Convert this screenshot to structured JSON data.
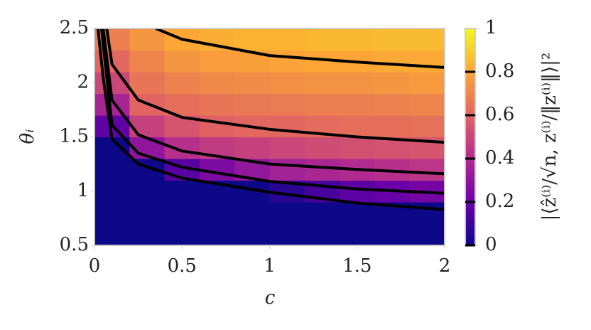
{
  "chart_data": {
    "type": "heatmap",
    "xlabel": "c",
    "ylabel": "θᵢ",
    "zlabel": "|⟨ẑ⁽ⁱ⁾/√n, z⁽ⁱ⁾/‖z⁽ⁱ⁾‖⟩|²",
    "xlim": [
      0,
      2
    ],
    "ylim": [
      0.5,
      2.5
    ],
    "zlim": [
      0,
      1
    ],
    "xticks": [
      0,
      0.5,
      1,
      1.5,
      2
    ],
    "yticks": [
      0.5,
      1,
      1.5,
      2,
      2.5
    ],
    "zticks": [
      0,
      0.2,
      0.4,
      0.6,
      0.8,
      1
    ],
    "colorscale": [
      "#0d0887",
      "#6a00a8",
      "#b12a90",
      "#e16462",
      "#fca636",
      "#f0f921"
    ],
    "x_bins": [
      0,
      0.2,
      0.4,
      0.6,
      0.8,
      1,
      1.2,
      1.4,
      1.6,
      1.8,
      2
    ],
    "y_bins": [
      0.5,
      0.7,
      0.9,
      1.1,
      1.3,
      1.5,
      1.7,
      1.9,
      2.1,
      2.3,
      2.5
    ],
    "z": [
      [
        0,
        0,
        0,
        0,
        0,
        0,
        0,
        0,
        0,
        0
      ],
      [
        0,
        0,
        0,
        0,
        0,
        0,
        0,
        0,
        0,
        0
      ],
      [
        0,
        0,
        0,
        0,
        0,
        0.06,
        0.12,
        0.17,
        0.2,
        0.23
      ],
      [
        0,
        0,
        0.16,
        0.25,
        0.31,
        0.36,
        0.38,
        0.4,
        0.42,
        0.44
      ],
      [
        0,
        0.3,
        0.42,
        0.46,
        0.48,
        0.5,
        0.52,
        0.53,
        0.54,
        0.55
      ],
      [
        0.18,
        0.48,
        0.55,
        0.59,
        0.61,
        0.61,
        0.62,
        0.63,
        0.63,
        0.64
      ],
      [
        0.37,
        0.6,
        0.63,
        0.65,
        0.66,
        0.67,
        0.68,
        0.68,
        0.69,
        0.7
      ],
      [
        0.5,
        0.65,
        0.69,
        0.71,
        0.72,
        0.73,
        0.74,
        0.74,
        0.75,
        0.76
      ],
      [
        0.61,
        0.7,
        0.75,
        0.77,
        0.78,
        0.79,
        0.8,
        0.8,
        0.81,
        0.81
      ],
      [
        0.68,
        0.75,
        0.8,
        0.82,
        0.83,
        0.83,
        0.84,
        0.84,
        0.85,
        0.85
      ]
    ],
    "contours": [
      {
        "level": 0,
        "x": [
          0.02,
          0.05,
          0.1,
          0.25,
          0.5,
          1,
          1.5,
          2
        ],
        "y": [
          2.5,
          2.04,
          1.48,
          1.25,
          1.12,
          0.99,
          0.89,
          0.83
        ]
      },
      {
        "level": 0.2,
        "x": [
          0.04,
          0.1,
          0.25,
          0.5,
          1,
          1.5,
          2
        ],
        "y": [
          2.5,
          1.61,
          1.35,
          1.22,
          1.09,
          1.02,
          0.98
        ]
      },
      {
        "level": 0.4,
        "x": [
          0.05,
          0.1,
          0.25,
          0.5,
          1,
          1.5,
          2
        ],
        "y": [
          2.5,
          1.84,
          1.52,
          1.37,
          1.25,
          1.2,
          1.16
        ]
      },
      {
        "level": 0.6,
        "x": [
          0.07,
          0.1,
          0.25,
          0.5,
          1,
          1.5,
          2
        ],
        "y": [
          2.5,
          2.17,
          1.84,
          1.68,
          1.57,
          1.5,
          1.45
        ]
      },
      {
        "level": 0.8,
        "x": [
          0.35,
          0.5,
          1,
          1.5,
          2
        ],
        "y": [
          2.5,
          2.4,
          2.25,
          2.19,
          2.14
        ]
      }
    ]
  }
}
